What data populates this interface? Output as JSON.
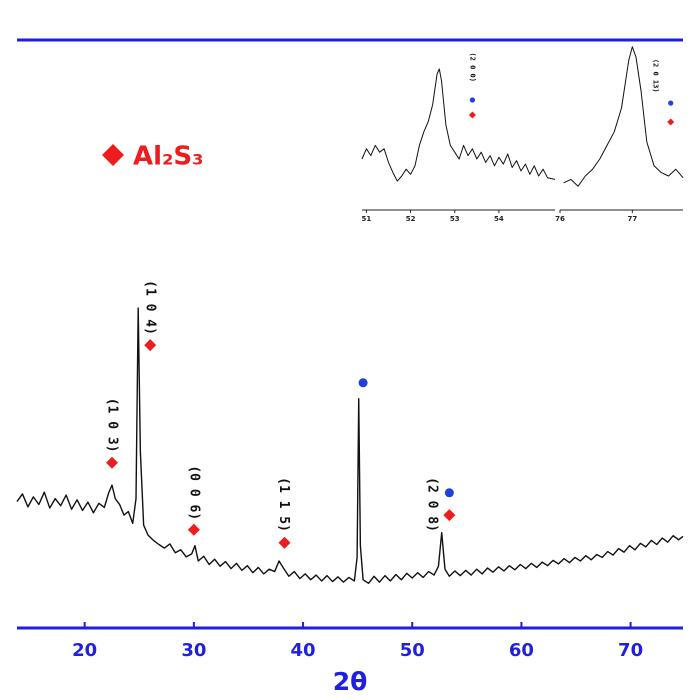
{
  "chart_data": [
    {
      "type": "line",
      "xlabel": "2θ",
      "axis_color": "#1f1fe0",
      "xlim": [
        13.8,
        74.8
      ],
      "ylim": [
        0,
        100
      ],
      "xticks": [
        20,
        30,
        40,
        50,
        60,
        70
      ],
      "x": [
        13.8,
        14.3,
        14.8,
        15.3,
        15.8,
        16.3,
        16.8,
        17.3,
        17.8,
        18.3,
        18.8,
        19.3,
        19.8,
        20.3,
        20.8,
        21.3,
        21.8,
        22.2,
        22.5,
        22.8,
        23.2,
        23.6,
        24.0,
        24.4,
        24.7,
        24.9,
        25.1,
        25.4,
        25.8,
        26.3,
        26.8,
        27.3,
        27.8,
        28.3,
        28.8,
        29.3,
        29.8,
        30.1,
        30.4,
        30.9,
        31.4,
        31.9,
        32.4,
        32.9,
        33.4,
        33.9,
        34.4,
        34.9,
        35.4,
        35.9,
        36.4,
        36.9,
        37.4,
        37.8,
        38.2,
        38.7,
        39.2,
        39.7,
        40.2,
        40.7,
        41.2,
        41.7,
        42.2,
        42.7,
        43.2,
        43.7,
        44.2,
        44.7,
        44.95,
        45.1,
        45.25,
        45.5,
        46.0,
        46.5,
        47.0,
        47.5,
        48.0,
        48.5,
        49.0,
        49.5,
        50.0,
        50.5,
        51.0,
        51.5,
        52.0,
        52.4,
        52.7,
        53.0,
        53.4,
        53.9,
        54.4,
        54.9,
        55.4,
        55.9,
        56.4,
        56.9,
        57.4,
        57.9,
        58.4,
        58.9,
        59.4,
        59.9,
        60.4,
        60.9,
        61.4,
        61.9,
        62.4,
        62.9,
        63.4,
        63.9,
        64.4,
        64.9,
        65.4,
        65.9,
        66.4,
        66.9,
        67.4,
        67.9,
        68.4,
        68.9,
        69.4,
        69.9,
        70.4,
        70.9,
        71.4,
        71.9,
        72.4,
        72.9,
        73.4,
        73.9,
        74.4,
        74.8
      ],
      "series": [
        {
          "color": "#111111",
          "values": [
            21.5,
            22.8,
            20.6,
            22.3,
            21.0,
            23.1,
            20.4,
            22.0,
            20.8,
            22.6,
            20.2,
            21.8,
            20.0,
            21.4,
            19.6,
            21.2,
            20.5,
            23.0,
            24.3,
            22.0,
            21.0,
            19.2,
            19.8,
            17.8,
            22.0,
            54.4,
            30.0,
            17.5,
            15.8,
            14.9,
            14.2,
            13.6,
            14.3,
            12.8,
            13.3,
            12.1,
            12.6,
            14.0,
            11.4,
            12.2,
            10.8,
            11.7,
            10.5,
            11.3,
            10.1,
            11.0,
            9.8,
            10.6,
            9.4,
            10.3,
            9.2,
            10.0,
            9.6,
            11.4,
            10.2,
            8.8,
            9.6,
            8.4,
            9.2,
            8.2,
            9.0,
            8.0,
            8.9,
            7.9,
            8.7,
            7.8,
            8.6,
            8.0,
            12.0,
            39.0,
            14.0,
            8.2,
            7.6,
            8.8,
            7.8,
            8.9,
            8.0,
            9.1,
            8.2,
            9.3,
            8.5,
            9.4,
            8.6,
            9.6,
            9.0,
            10.5,
            16.2,
            10.0,
            8.8,
            9.7,
            8.9,
            9.8,
            9.0,
            10.0,
            9.2,
            10.2,
            9.5,
            10.4,
            9.7,
            10.6,
            9.9,
            10.8,
            10.1,
            11.0,
            10.3,
            11.2,
            10.6,
            11.5,
            10.9,
            11.8,
            11.1,
            12.0,
            11.4,
            12.3,
            11.6,
            12.5,
            12.0,
            13.0,
            12.4,
            13.5,
            12.9,
            14.0,
            13.3,
            14.4,
            13.8,
            14.9,
            14.2,
            15.3,
            14.6,
            15.7,
            15.0,
            15.6
          ]
        }
      ],
      "marker_series": [
        {
          "name": "Al₂S₃",
          "color": "#ee1c1c",
          "shape": "diamond",
          "x": [
            22.5,
            26.0,
            30.0,
            38.3,
            53.4
          ],
          "y": [
            28.1,
            48.1,
            16.7,
            14.5,
            19.2
          ]
        },
        {
          "color": "#1f3fe0",
          "shape": "circle",
          "x": [
            45.5,
            53.4
          ],
          "y": [
            41.7,
            23.0
          ]
        }
      ],
      "annotations": [
        {
          "text": "(1 0 3)",
          "x": 22.5,
          "y": 34.5
        },
        {
          "text": "(1 0 4)",
          "x": 26.0,
          "y": 54.5
        },
        {
          "text": "(0 0 6)",
          "x": 30.0,
          "y": 23.0
        },
        {
          "text": "(1 1 5)",
          "x": 38.2,
          "y": 21.0
        },
        {
          "text": "(2 0 8)",
          "x": 51.8,
          "y": 21.0
        }
      ]
    },
    {
      "type": "line",
      "axis_color": "#222222",
      "xlim": [
        50.9,
        55.27
      ],
      "ylim": [
        0,
        100
      ],
      "xticks": [
        51,
        52,
        53,
        54
      ],
      "x": [
        50.9,
        51.0,
        51.1,
        51.2,
        51.3,
        51.4,
        51.5,
        51.6,
        51.7,
        51.8,
        51.9,
        52.0,
        52.1,
        52.2,
        52.3,
        52.4,
        52.5,
        52.6,
        52.65,
        52.7,
        52.8,
        52.9,
        53.0,
        53.1,
        53.2,
        53.3,
        53.4,
        53.5,
        53.6,
        53.7,
        53.8,
        53.9,
        54.0,
        54.1,
        54.2,
        54.3,
        54.4,
        54.5,
        54.6,
        54.7,
        54.8,
        54.9,
        55.0,
        55.1,
        55.27
      ],
      "series": [
        {
          "color": "#111111",
          "values": [
            30,
            36,
            32,
            38,
            34,
            36,
            28,
            22,
            17,
            20,
            24,
            21,
            26,
            38,
            46,
            52,
            62,
            80,
            83,
            76,
            50,
            38,
            34,
            30,
            38,
            32,
            36,
            30,
            34,
            28,
            32,
            26,
            31,
            27,
            33,
            25,
            29,
            23,
            27,
            21,
            26,
            20,
            24,
            19,
            18
          ]
        }
      ],
      "marker_series": [
        {
          "color": "#ee1c1c",
          "shape": "diamond",
          "x": [
            53.4
          ],
          "y": [
            55.9
          ]
        },
        {
          "color": "#1f3fe0",
          "shape": "circle",
          "x": [
            53.4
          ],
          "y": [
            64.7
          ]
        }
      ],
      "annotations": [
        {
          "text": "(2 0 0)",
          "x": 53.4,
          "y": 84
        }
      ]
    },
    {
      "type": "line",
      "axis_color": "#222222",
      "xlim": [
        76.0,
        77.7
      ],
      "ylim": [
        0,
        100
      ],
      "xticks": [
        76,
        77
      ],
      "x": [
        76.05,
        76.15,
        76.25,
        76.35,
        76.45,
        76.55,
        76.65,
        76.75,
        76.85,
        76.95,
        77.0,
        77.05,
        77.12,
        77.2,
        77.3,
        77.4,
        77.5,
        77.6,
        77.7
      ],
      "series": [
        {
          "color": "#111111",
          "values": [
            16,
            18,
            14,
            20,
            24,
            30,
            38,
            46,
            60,
            88,
            96,
            90,
            70,
            40,
            26,
            22,
            20,
            24,
            19
          ]
        }
      ],
      "marker_series": [
        {
          "color": "#ee1c1c",
          "shape": "diamond",
          "x": [
            77.53
          ],
          "y": [
            51.8
          ]
        },
        {
          "color": "#1f3fe0",
          "shape": "circle",
          "x": [
            77.53
          ],
          "y": [
            62.9
          ]
        }
      ],
      "annotations": [
        {
          "text": "(2 0 13)",
          "x": 77.32,
          "y": 79
        }
      ]
    }
  ]
}
